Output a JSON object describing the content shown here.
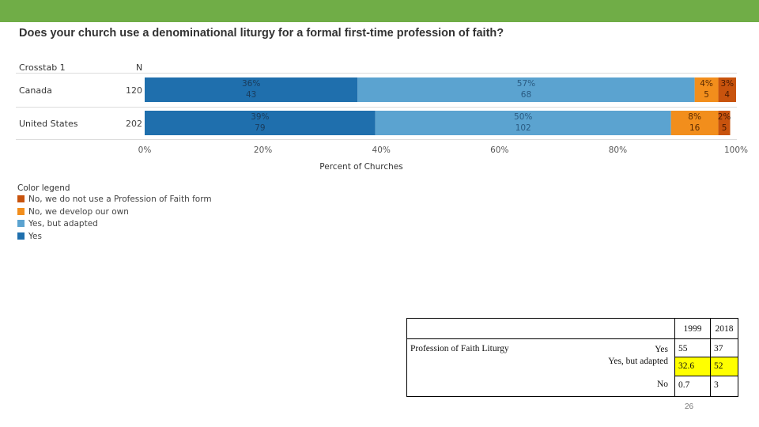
{
  "title": "Does your church use a denominational liturgy for a formal first-time profession of faith?",
  "crosstab_header": "Crosstab 1",
  "n_header": "N",
  "chart_data": {
    "type": "bar",
    "orientation": "horizontal",
    "stacked": true,
    "xlabel": "Percent of Churches",
    "xlim": [
      0,
      100
    ],
    "xticks": [
      "0%",
      "20%",
      "40%",
      "60%",
      "80%",
      "100%"
    ],
    "legend_title": "Color legend",
    "legend_position": "bottom-left",
    "categories": [
      "Canada",
      "United States"
    ],
    "n": [
      "120",
      "202"
    ],
    "series": [
      {
        "name": "Yes",
        "color": "#1f6fad",
        "values": [
          36,
          39
        ],
        "labels": [
          "36%",
          "39%"
        ],
        "counts": [
          "43",
          "79"
        ]
      },
      {
        "name": "Yes, but adapted",
        "color": "#5ba3d0",
        "values": [
          57,
          50
        ],
        "labels": [
          "57%",
          "50%"
        ],
        "counts": [
          "68",
          "102"
        ]
      },
      {
        "name": "No, we develop our own",
        "color": "#f28e1c",
        "values": [
          4,
          8
        ],
        "labels": [
          "4%",
          "8%"
        ],
        "counts": [
          "5",
          "16"
        ]
      },
      {
        "name": "No, we do not use a Profession of Faith form",
        "color": "#c8530d",
        "values": [
          3,
          2
        ],
        "labels": [
          "3%",
          "2%"
        ],
        "counts": [
          "4",
          "5"
        ]
      }
    ],
    "legend_order": [
      3,
      2,
      1,
      0
    ]
  },
  "table": {
    "years": [
      "1999",
      "2018"
    ],
    "label": "Profession of Faith Liturgy",
    "rows": [
      {
        "name": "Yes",
        "v1999": "55",
        "v2018": "37"
      },
      {
        "name": "Yes, but adapted",
        "v1999": "32.6",
        "v2018": "52",
        "highlight": "#ffff00"
      },
      {
        "name": "No",
        "v1999": "0.7",
        "v2018": "3"
      }
    ]
  },
  "page_number": "26"
}
